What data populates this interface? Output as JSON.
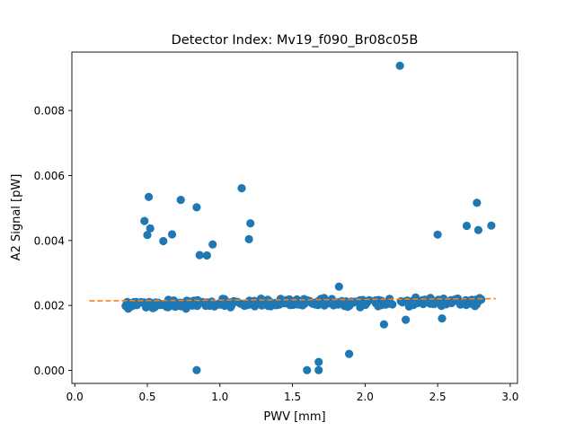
{
  "chart_data": {
    "type": "scatter",
    "title": "Detector Index: Mv19_f090_Br08c05B",
    "xlabel": "PWV [mm]",
    "ylabel": "A2 Signal [pW]",
    "xlim": [
      -0.02,
      3.05
    ],
    "ylim": [
      -0.0004,
      0.0098
    ],
    "xticks": [
      0.0,
      0.5,
      1.0,
      1.5,
      2.0,
      2.5,
      3.0
    ],
    "xtick_labels": [
      "0.0",
      "0.5",
      "1.0",
      "1.5",
      "2.0",
      "2.5",
      "3.0"
    ],
    "yticks": [
      0.0,
      0.002,
      0.004,
      0.006,
      0.008
    ],
    "ytick_labels": [
      "0.000",
      "0.002",
      "0.004",
      "0.006",
      "0.008"
    ],
    "colors": {
      "points": "#1f77b4",
      "fit": "#ff7f0e"
    },
    "fit_line": {
      "x": [
        0.1,
        2.9
      ],
      "y": [
        0.00214,
        0.00221
      ],
      "style": "dashed"
    },
    "outliers": {
      "x": [
        2.24,
        1.15,
        0.51,
        0.73,
        0.84,
        0.48,
        0.52,
        0.67,
        1.21,
        0.5,
        1.2,
        0.61,
        0.95,
        0.86,
        0.91,
        2.77,
        2.7,
        2.87,
        2.78,
        2.5,
        1.82,
        2.13,
        2.28,
        2.53,
        1.89,
        1.68,
        1.6,
        1.68,
        0.84
      ],
      "y": [
        0.00938,
        0.00561,
        0.00534,
        0.00525,
        0.00502,
        0.0046,
        0.00437,
        0.00419,
        0.00453,
        0.00417,
        0.00404,
        0.00398,
        0.00388,
        0.00355,
        0.00354,
        0.00516,
        0.00445,
        0.00446,
        0.00432,
        0.00418,
        0.00258,
        0.00142,
        0.00156,
        0.0016,
        0.00051,
        0.00026,
        1e-05,
        1e-05,
        1e-05
      ]
    },
    "cluster": {
      "x_range": [
        0.35,
        2.82
      ],
      "y_center": 0.00205,
      "y_spread": 0.00012,
      "count": 330
    }
  }
}
